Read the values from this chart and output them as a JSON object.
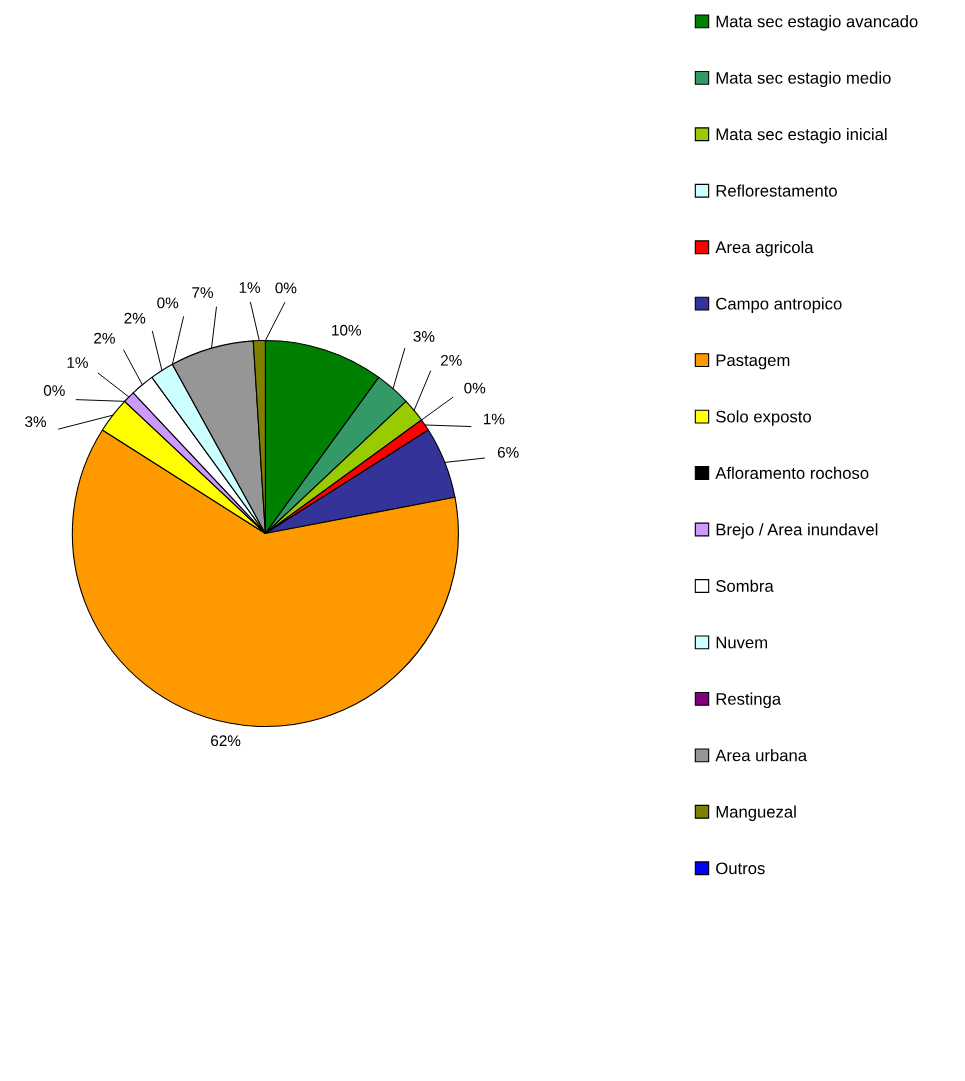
{
  "chart_data": {
    "type": "pie",
    "categories": [
      "Mata sec estagio avancado",
      "Mata sec estagio medio",
      "Mata sec estagio inicial",
      "Reflorestamento",
      "Area agricola",
      "Campo antropico",
      "Pastagem",
      "Solo exposto",
      "Afloramento rochoso",
      "Brejo / Area inundavel",
      "Sombra",
      "Nuvem",
      "Restinga",
      "Area urbana",
      "Manguezal",
      "Outros"
    ],
    "values": [
      10,
      3,
      2,
      0,
      1,
      6,
      62,
      3,
      0,
      1,
      2,
      2,
      0,
      7,
      1,
      0
    ],
    "value_labels": [
      "10%",
      "3%",
      "2%",
      "0%",
      "1%",
      "6%",
      "62%",
      "3%",
      "0%",
      "1%",
      "2%",
      "2%",
      "0%",
      "7%",
      "1%",
      "0%"
    ],
    "colors": [
      "#008000",
      "#339966",
      "#99cc00",
      "#ccffff",
      "#ff0000",
      "#333399",
      "#ff9900",
      "#ffff00",
      "#000000",
      "#cc99ff",
      "#ffffff",
      "#ccffff",
      "#800080",
      "#969696",
      "#808000",
      "#0000ff"
    ],
    "legend": "right"
  }
}
